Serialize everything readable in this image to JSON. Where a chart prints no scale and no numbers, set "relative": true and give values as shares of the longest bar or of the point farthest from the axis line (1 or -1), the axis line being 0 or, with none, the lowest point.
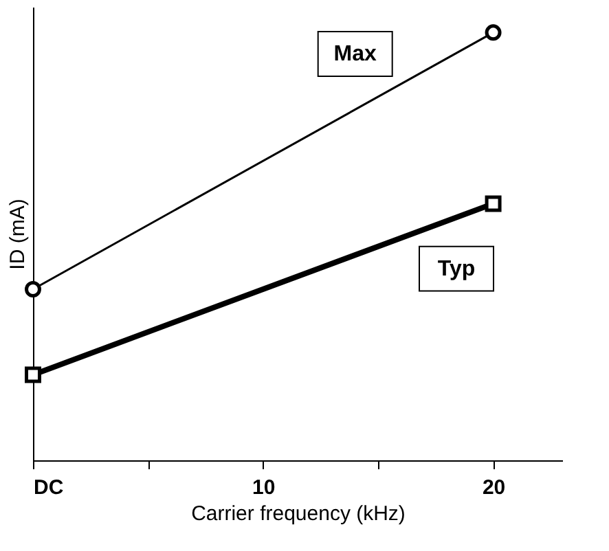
{
  "chart_data": {
    "type": "line",
    "relative": true,
    "xlabel": "Carrier frequency (kHz)",
    "ylabel": "ID (mA)",
    "x": [
      0,
      20
    ],
    "xlim": [
      0,
      23
    ],
    "xticks": [
      {
        "value": 0,
        "label": "DC"
      },
      {
        "value": 5,
        "label": null
      },
      10,
      {
        "value": 15,
        "label": null
      },
      20
    ],
    "grid": false,
    "line_style": "solid",
    "series": [
      {
        "name": "Max",
        "color": "#000000",
        "marker": "circle",
        "values": [
          0.4,
          1.0
        ]
      },
      {
        "name": "Typ",
        "color": "#000000",
        "marker": "square",
        "values": [
          0.2,
          0.6
        ]
      }
    ]
  }
}
